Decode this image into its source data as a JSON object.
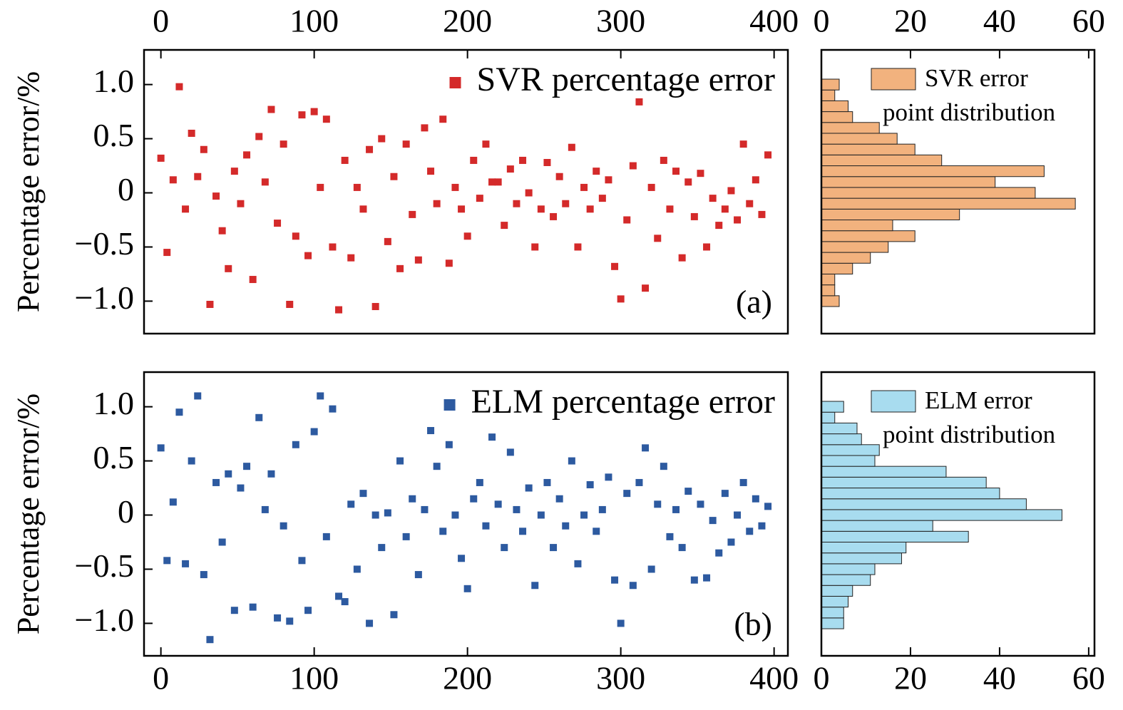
{
  "chart_data": [
    {
      "type": "scatter",
      "ylabel": "Percentage error/%",
      "annotation": "(a)",
      "legend": "upper right",
      "xaxis": "top",
      "xlim": [
        -11,
        409
      ],
      "xticks": [
        0,
        100,
        200,
        300,
        400
      ],
      "ylim": [
        -1.3,
        1.32
      ],
      "yticks": [
        {
          "value": 1,
          "label": "1.0"
        },
        0.5,
        0,
        {
          "value": -0.5,
          "label": "−0.5"
        },
        {
          "value": -1,
          "label": "−1.0"
        }
      ],
      "x": [
        0,
        4,
        8,
        12,
        16,
        20,
        24,
        28,
        32,
        36,
        40,
        44,
        48,
        52,
        56,
        60,
        64,
        68,
        72,
        76,
        80,
        84,
        88,
        92,
        96,
        100,
        104,
        108,
        112,
        116,
        120,
        124,
        128,
        132,
        136,
        140,
        144,
        148,
        152,
        156,
        160,
        164,
        168,
        172,
        176,
        180,
        184,
        188,
        192,
        196,
        200,
        204,
        208,
        212,
        216,
        220,
        224,
        228,
        232,
        236,
        240,
        244,
        248,
        252,
        256,
        260,
        264,
        268,
        272,
        276,
        280,
        284,
        288,
        292,
        296,
        300,
        304,
        308,
        312,
        316,
        320,
        324,
        328,
        332,
        336,
        340,
        344,
        348,
        352,
        356,
        360,
        364,
        368,
        372,
        376,
        380,
        384,
        388,
        392,
        396
      ],
      "series": [
        {
          "name": "SVR percentage error",
          "color": "#d42a2a",
          "values": [
            0.32,
            -0.55,
            0.12,
            0.98,
            -0.15,
            0.55,
            0.15,
            0.4,
            -1.03,
            -0.03,
            -0.35,
            -0.7,
            0.2,
            -0.1,
            0.35,
            -0.8,
            0.52,
            0.1,
            0.77,
            -0.28,
            0.45,
            -1.03,
            -0.4,
            0.72,
            -0.58,
            0.75,
            0.05,
            0.68,
            -0.5,
            -1.08,
            0.3,
            -0.6,
            0.05,
            -0.15,
            0.4,
            -1.05,
            0.5,
            -0.45,
            0.15,
            -0.7,
            0.45,
            -0.2,
            -0.62,
            0.6,
            0.2,
            -0.1,
            0.68,
            -0.65,
            0.05,
            -0.15,
            -0.4,
            0.3,
            -0.05,
            0.45,
            0.1,
            0.1,
            -0.3,
            0.22,
            -0.1,
            0.3,
            0.0,
            -0.5,
            -0.15,
            0.28,
            -0.22,
            0.15,
            -0.1,
            0.42,
            -0.5,
            0.05,
            -0.15,
            0.2,
            -0.05,
            0.12,
            -0.68,
            -0.98,
            -0.25,
            0.25,
            0.84,
            -0.88,
            0.05,
            -0.42,
            0.3,
            -0.15,
            0.2,
            -0.6,
            0.1,
            -0.22,
            0.18,
            -0.5,
            -0.05,
            -0.3,
            -0.15,
            0.02,
            -0.25,
            0.45,
            -0.1,
            0.12,
            -0.2,
            0.35
          ]
        }
      ]
    },
    {
      "type": "histogram",
      "orientation": "horizontal",
      "legend": "upper right",
      "xaxis": "top",
      "xlim": [
        0,
        61.3
      ],
      "xticks": [
        0,
        20,
        40,
        60
      ],
      "ylim": [
        -1.3,
        1.32
      ],
      "bins": [
        -1.05,
        -0.95,
        -0.85,
        -0.75,
        -0.65,
        -0.55,
        -0.45,
        -0.35,
        -0.25,
        -0.15,
        -0.05,
        0.05,
        0.15,
        0.25,
        0.35,
        0.45,
        0.55,
        0.65,
        0.75,
        0.85,
        0.95,
        1.05
      ],
      "series": [
        {
          "name": "SVR error point distribution",
          "color": "#f2b27e",
          "values": [
            4,
            3,
            3,
            7,
            11,
            15,
            21,
            16,
            31,
            57,
            48,
            39,
            50,
            27,
            21,
            17,
            13,
            7,
            6,
            3,
            4
          ]
        }
      ]
    },
    {
      "type": "scatter",
      "ylabel": "Percentage error/%",
      "annotation": "(b)",
      "legend": "upper right",
      "xaxis": "bottom",
      "xlim": [
        -11,
        409
      ],
      "xticks": [
        0,
        100,
        200,
        300,
        400
      ],
      "ylim": [
        -1.3,
        1.32
      ],
      "yticks": [
        {
          "value": 1,
          "label": "1.0"
        },
        0.5,
        0,
        {
          "value": -0.5,
          "label": "−0.5"
        },
        {
          "value": -1,
          "label": "−1.0"
        }
      ],
      "x": [
        0,
        4,
        8,
        12,
        16,
        20,
        24,
        28,
        32,
        36,
        40,
        44,
        48,
        52,
        56,
        60,
        64,
        68,
        72,
        76,
        80,
        84,
        88,
        92,
        96,
        100,
        104,
        108,
        112,
        116,
        120,
        124,
        128,
        132,
        136,
        140,
        144,
        148,
        152,
        156,
        160,
        164,
        168,
        172,
        176,
        180,
        184,
        188,
        192,
        196,
        200,
        204,
        208,
        212,
        216,
        220,
        224,
        228,
        232,
        236,
        240,
        244,
        248,
        252,
        256,
        260,
        264,
        268,
        272,
        276,
        280,
        284,
        288,
        292,
        296,
        300,
        304,
        308,
        312,
        316,
        320,
        324,
        328,
        332,
        336,
        340,
        344,
        348,
        352,
        356,
        360,
        364,
        368,
        372,
        376,
        380,
        384,
        388,
        392,
        396
      ],
      "series": [
        {
          "name": "ELM percentage error",
          "color": "#2d5aa0",
          "values": [
            0.62,
            -0.42,
            0.12,
            0.95,
            -0.45,
            0.5,
            1.1,
            -0.55,
            -1.15,
            0.3,
            -0.25,
            0.38,
            -0.88,
            0.25,
            0.45,
            -0.85,
            0.9,
            0.05,
            0.38,
            -0.95,
            -0.1,
            -0.98,
            0.65,
            -0.42,
            -0.88,
            0.77,
            1.1,
            -0.2,
            0.98,
            -0.75,
            -0.8,
            0.1,
            -0.5,
            0.2,
            -1.0,
            0.0,
            -0.3,
            0.02,
            -0.92,
            0.5,
            -0.2,
            0.15,
            -0.55,
            0.05,
            0.78,
            0.45,
            -0.15,
            0.65,
            0.0,
            -0.4,
            -0.68,
            0.15,
            0.3,
            -0.1,
            0.72,
            0.1,
            -0.3,
            0.58,
            0.05,
            -0.15,
            0.25,
            -0.65,
            0.0,
            0.3,
            -0.3,
            0.15,
            -0.1,
            0.5,
            -0.45,
            0.0,
            0.28,
            -0.15,
            0.05,
            0.35,
            -0.6,
            -1.0,
            0.2,
            -0.65,
            0.3,
            0.62,
            -0.5,
            0.1,
            0.45,
            -0.2,
            0.05,
            -0.3,
            0.22,
            -0.6,
            0.1,
            -0.58,
            -0.05,
            -0.35,
            0.2,
            -0.25,
            0.0,
            0.3,
            -0.15,
            0.15,
            -0.1,
            0.08
          ]
        }
      ]
    },
    {
      "type": "histogram",
      "orientation": "horizontal",
      "legend": "upper right",
      "xaxis": "bottom",
      "xlim": [
        0,
        61.3
      ],
      "xticks": [
        0,
        20,
        40,
        60
      ],
      "ylim": [
        -1.3,
        1.32
      ],
      "bins": [
        -1.05,
        -0.95,
        -0.85,
        -0.75,
        -0.65,
        -0.55,
        -0.45,
        -0.35,
        -0.25,
        -0.15,
        -0.05,
        0.05,
        0.15,
        0.25,
        0.35,
        0.45,
        0.55,
        0.65,
        0.75,
        0.85,
        0.95,
        1.05
      ],
      "series": [
        {
          "name": "ELM error point distribution",
          "color": "#a8dcef",
          "values": [
            5,
            5,
            6,
            7,
            11,
            12,
            18,
            19,
            33,
            25,
            54,
            46,
            40,
            37,
            28,
            12,
            13,
            9,
            8,
            3,
            5
          ]
        }
      ]
    }
  ]
}
